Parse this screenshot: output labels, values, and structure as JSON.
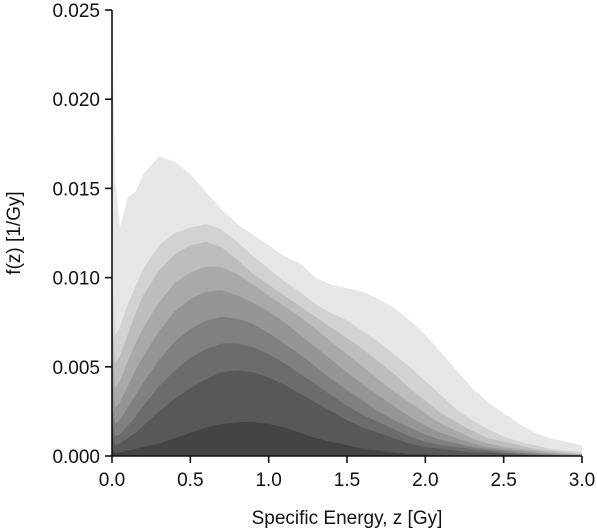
{
  "chart_data": {
    "type": "area",
    "description_kind": "fan chart of specific-energy distributions (nested quantile bands)",
    "xlabel": "Specific Energy, z [Gy]",
    "ylabel": "f(z) [1/Gy]",
    "xlim": [
      0.0,
      3.0
    ],
    "ylim": [
      0.0,
      0.025
    ],
    "x_ticks": [
      "0.0",
      "0.5",
      "1.0",
      "1.5",
      "2.0",
      "2.5",
      "3.0"
    ],
    "y_ticks": [
      "0.000",
      "0.005",
      "0.010",
      "0.015",
      "0.020",
      "0.025"
    ],
    "grid": false,
    "legend": "none",
    "band_colors": [
      "#e6e6e6",
      "#d2d2d2",
      "#bdbdbd",
      "#a9a9a9",
      "#959595",
      "#808080",
      "#6c6c6c",
      "#585858",
      "#444444"
    ],
    "x": [
      0.0,
      0.02,
      0.05,
      0.1,
      0.15,
      0.2,
      0.3,
      0.4,
      0.5,
      0.6,
      0.7,
      0.8,
      0.9,
      1.0,
      1.1,
      1.2,
      1.3,
      1.4,
      1.5,
      1.6,
      1.7,
      1.8,
      1.9,
      2.0,
      2.1,
      2.2,
      2.3,
      2.4,
      2.5,
      2.6,
      2.7,
      2.8,
      2.9,
      3.0
    ],
    "series": [
      {
        "values": [
          0.025,
          0.0155,
          0.0128,
          0.0145,
          0.0148,
          0.0158,
          0.0168,
          0.0165,
          0.0158,
          0.0148,
          0.0138,
          0.013,
          0.0124,
          0.0118,
          0.0112,
          0.0108,
          0.01,
          0.0096,
          0.0094,
          0.0092,
          0.0088,
          0.0083,
          0.0076,
          0.0068,
          0.0058,
          0.0048,
          0.0038,
          0.003,
          0.0024,
          0.0018,
          0.0013,
          0.001,
          0.0008,
          0.0006
        ]
      },
      {
        "values": [
          0.0105,
          0.0068,
          0.0072,
          0.0085,
          0.0095,
          0.0105,
          0.0118,
          0.0125,
          0.0128,
          0.013,
          0.0127,
          0.012,
          0.0112,
          0.0105,
          0.0098,
          0.0092,
          0.0085,
          0.008,
          0.0076,
          0.007,
          0.0064,
          0.0057,
          0.005,
          0.0042,
          0.0034,
          0.0026,
          0.002,
          0.0015,
          0.0011,
          0.0008,
          0.0006,
          0.0004,
          0.0003,
          0.0002
        ]
      },
      {
        "values": [
          0.008,
          0.0052,
          0.0056,
          0.0068,
          0.008,
          0.009,
          0.0104,
          0.0113,
          0.0118,
          0.012,
          0.0117,
          0.011,
          0.0102,
          0.0096,
          0.009,
          0.0084,
          0.0078,
          0.0072,
          0.0066,
          0.006,
          0.0053,
          0.0046,
          0.0038,
          0.0031,
          0.0024,
          0.0019,
          0.0014,
          0.001,
          0.0008,
          0.0006,
          0.0004,
          0.0003,
          0.0002,
          0.0001
        ]
      },
      {
        "values": [
          0.006,
          0.0038,
          0.0042,
          0.0053,
          0.0063,
          0.0072,
          0.0086,
          0.0097,
          0.0103,
          0.0106,
          0.0106,
          0.0102,
          0.0096,
          0.009,
          0.0084,
          0.0078,
          0.0071,
          0.0064,
          0.0057,
          0.005,
          0.0043,
          0.0036,
          0.003,
          0.0024,
          0.0018,
          0.0014,
          0.001,
          0.0007,
          0.0005,
          0.0004,
          0.0003,
          0.0002,
          0.0001,
          0.0001
        ]
      },
      {
        "values": [
          0.0045,
          0.0027,
          0.003,
          0.0039,
          0.0048,
          0.0056,
          0.007,
          0.0081,
          0.0088,
          0.0092,
          0.0093,
          0.009,
          0.0086,
          0.0081,
          0.0075,
          0.0068,
          0.0061,
          0.0054,
          0.0047,
          0.004,
          0.0034,
          0.0028,
          0.0022,
          0.0017,
          0.0013,
          0.001,
          0.0007,
          0.0005,
          0.0004,
          0.0003,
          0.0002,
          0.0001,
          0.0001,
          0.0
        ]
      },
      {
        "values": [
          0.003,
          0.0018,
          0.002,
          0.0027,
          0.0034,
          0.0041,
          0.0054,
          0.0064,
          0.0071,
          0.0076,
          0.0078,
          0.0077,
          0.0074,
          0.0069,
          0.0063,
          0.0057,
          0.005,
          0.0043,
          0.0037,
          0.0031,
          0.0025,
          0.002,
          0.0016,
          0.0012,
          0.0009,
          0.0007,
          0.0005,
          0.0004,
          0.0003,
          0.0002,
          0.0001,
          0.0001,
          0.0,
          0.0
        ]
      },
      {
        "values": [
          0.002,
          0.0011,
          0.0012,
          0.0017,
          0.0022,
          0.0028,
          0.0039,
          0.0048,
          0.0055,
          0.006,
          0.0063,
          0.0063,
          0.0061,
          0.0057,
          0.0052,
          0.0046,
          0.004,
          0.0034,
          0.0028,
          0.0023,
          0.0019,
          0.0015,
          0.0011,
          0.0008,
          0.0006,
          0.0005,
          0.0004,
          0.0003,
          0.0002,
          0.0001,
          0.0001,
          0.0,
          0.0,
          0.0
        ]
      },
      {
        "values": [
          0.0012,
          0.0006,
          0.0007,
          0.001,
          0.0013,
          0.0017,
          0.0025,
          0.0032,
          0.0038,
          0.0043,
          0.0047,
          0.0048,
          0.0047,
          0.0044,
          0.004,
          0.0035,
          0.003,
          0.0025,
          0.002,
          0.0016,
          0.0013,
          0.001,
          0.0007,
          0.0005,
          0.0004,
          0.0003,
          0.0002,
          0.0002,
          0.0001,
          0.0001,
          0.0,
          0.0,
          0.0,
          0.0
        ]
      },
      {
        "values": [
          0.0005,
          0.0002,
          0.0002,
          0.0003,
          0.0004,
          0.0005,
          0.0007,
          0.001,
          0.0013,
          0.0016,
          0.0018,
          0.0019,
          0.0019,
          0.0018,
          0.0016,
          0.0013,
          0.001,
          0.0008,
          0.0006,
          0.0004,
          0.0003,
          0.0002,
          0.0001,
          0.0001,
          0.0,
          0.0,
          0.0,
          0.0,
          0.0,
          0.0,
          0.0,
          0.0,
          0.0,
          0.0
        ]
      }
    ]
  }
}
